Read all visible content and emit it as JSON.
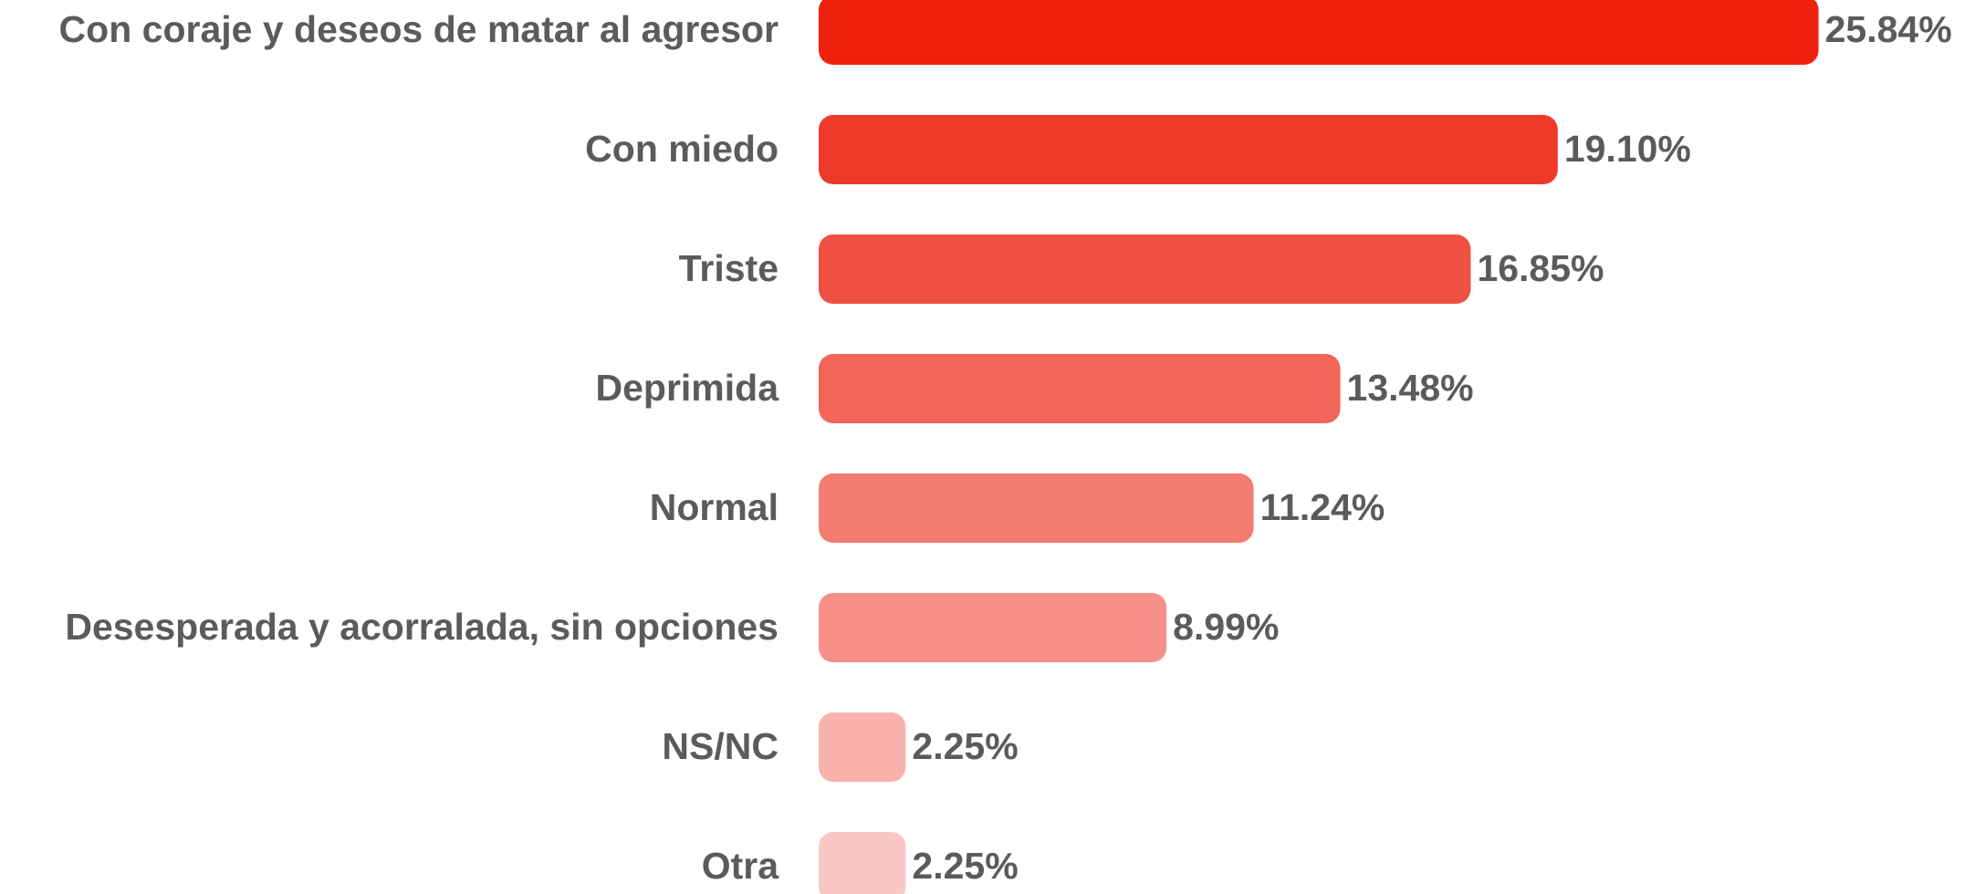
{
  "chart_data": {
    "type": "bar",
    "orientation": "horizontal",
    "categories": [
      "Con coraje y deseos de matar al agresor",
      "Con miedo",
      "Triste",
      "Deprimida",
      "Normal",
      "Desesperada y acorralada, sin opciones",
      "NS/NC",
      "Otra"
    ],
    "values": [
      25.84,
      19.1,
      16.85,
      13.48,
      11.24,
      8.99,
      2.25,
      2.25
    ],
    "value_labels": [
      "25.84%",
      "19.10%",
      "16.85%",
      "13.48%",
      "11.24%",
      "8.99%",
      "2.25%",
      "2.25%"
    ],
    "colors": [
      "#ef200e",
      "#f03a29",
      "#f05041",
      "#f26559",
      "#f47b70",
      "#f69088",
      "#f9b2ac",
      "#fac8c4"
    ]
  }
}
